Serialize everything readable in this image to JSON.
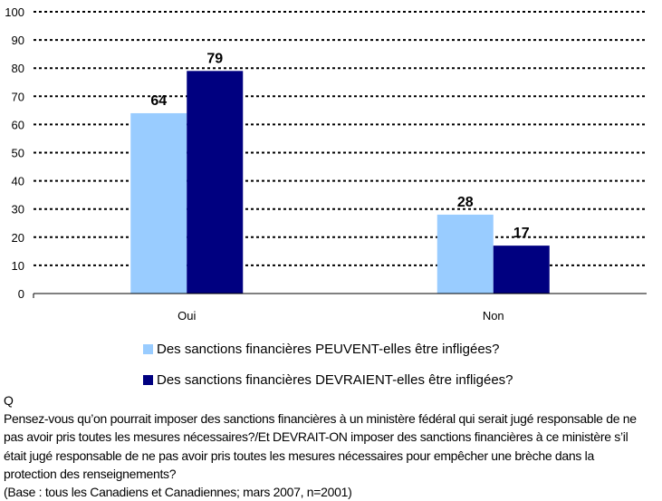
{
  "chart_data": {
    "type": "bar",
    "categories": [
      "Oui",
      "Non"
    ],
    "series": [
      {
        "name": "Des sanctions financières PEUVENT-elles être infligées?",
        "values": [
          64,
          28
        ],
        "color": "#99ccff"
      },
      {
        "name": "Des sanctions financières DEVRAIENT-elles être infligées?",
        "values": [
          79,
          17
        ],
        "color": "#000080"
      }
    ],
    "ylim": [
      0,
      100
    ],
    "yticks": [
      0,
      10,
      20,
      30,
      40,
      50,
      60,
      70,
      80,
      90,
      100
    ],
    "grid": true,
    "legend": "bottom",
    "title": "",
    "xlabel": "",
    "ylabel": ""
  },
  "caption": {
    "q": "Q",
    "lines": [
      "Pensez-vous qu’on pourrait imposer des sanctions financières à un ministère fédéral qui serait jugé responsable de ne",
      "pas avoir pris toutes les mesures nécessaires?/Et DEVRAIT-ON imposer des sanctions financières à ce ministère s’il",
      "était jugé responsable de ne pas avoir pris toutes les mesures nécessaires pour empêcher une brèche dans la",
      "protection des renseignements?"
    ],
    "base": "(Base : tous les Canadiens et Canadiennes; mars 2007, n=2001)"
  }
}
